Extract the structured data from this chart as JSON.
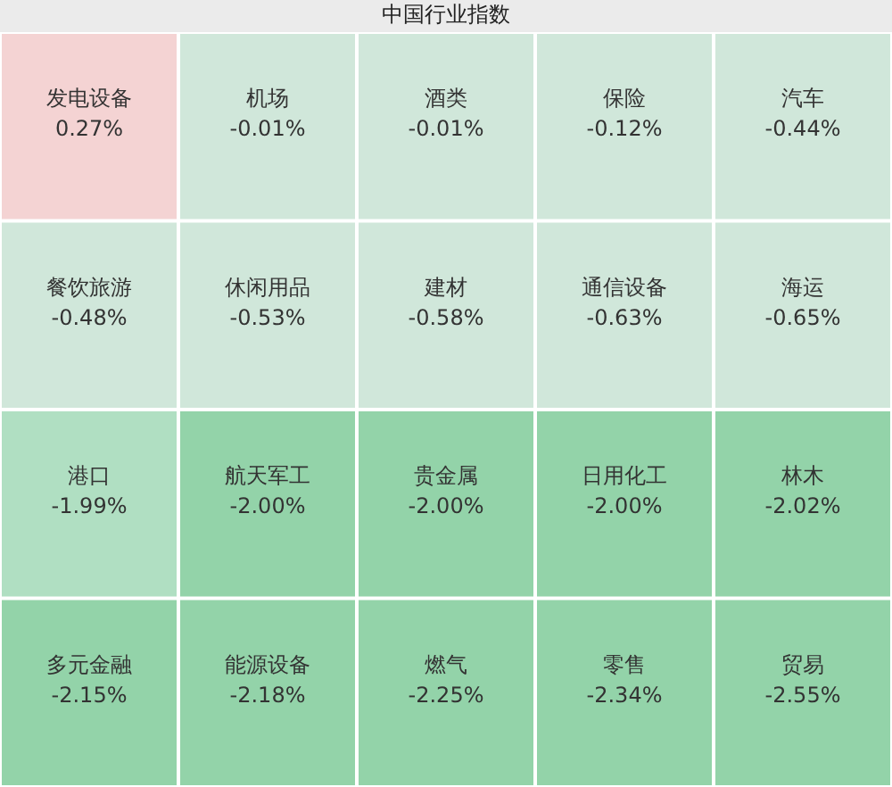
{
  "chart_data": {
    "type": "other",
    "title": "中国行业指数",
    "categories": [
      "发电设备",
      "机场",
      "酒类",
      "保险",
      "汽车",
      "餐饮旅游",
      "休闲用品",
      "建材",
      "通信设备",
      "海运",
      "港口",
      "航天军工",
      "贵金属",
      "日用化工",
      "林木",
      "多元金融",
      "能源设备",
      "燃气",
      "零售",
      "贸易"
    ],
    "values": [
      0.27,
      -0.01,
      -0.01,
      -0.12,
      -0.44,
      -0.48,
      -0.53,
      -0.58,
      -0.63,
      -0.65,
      -1.99,
      -2.0,
      -2.0,
      -2.0,
      -2.02,
      -2.15,
      -2.18,
      -2.25,
      -2.34,
      -2.55
    ],
    "value_labels": [
      "0.27%",
      "-0.01%",
      "-0.01%",
      "-0.12%",
      "-0.44%",
      "-0.48%",
      "-0.53%",
      "-0.58%",
      "-0.63%",
      "-0.65%",
      "-1.99%",
      "-2.00%",
      "-2.00%",
      "-2.00%",
      "-2.02%",
      "-2.15%",
      "-2.18%",
      "-2.25%",
      "-2.34%",
      "-2.55%"
    ],
    "colors": [
      "#f4d3d3",
      "#d0e7da",
      "#d0e7da",
      "#d0e7da",
      "#d0e7da",
      "#d0e7da",
      "#d0e7da",
      "#d0e7da",
      "#d0e7da",
      "#d0e7da",
      "#b0dfc2",
      "#93d3a9",
      "#93d3a9",
      "#93d3a9",
      "#93d3a9",
      "#93d3a9",
      "#93d3a9",
      "#93d3a9",
      "#93d3a9",
      "#93d3a9"
    ]
  }
}
